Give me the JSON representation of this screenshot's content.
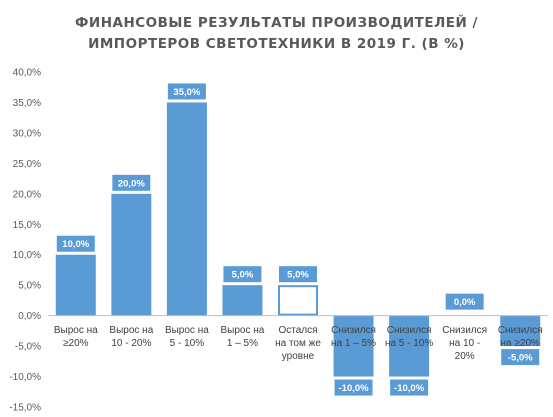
{
  "chart_data": {
    "type": "bar",
    "title_lines": [
      "ФИНАНСОВЫЕ РЕЗУЛЬТАТЫ ПРОИЗВОДИТЕЛЕЙ /",
      "ИМПОРТЕРОВ СВЕТОТЕХНИКИ В 2019 Г. (В %)"
    ],
    "categories": [
      [
        "Вырос на",
        "≥20%"
      ],
      [
        "Вырос на",
        "10 - 20%"
      ],
      [
        "Вырос на",
        "5 - 10%"
      ],
      [
        "Вырос на",
        "1 – 5%"
      ],
      [
        "Остался",
        "на том же",
        "уровне"
      ],
      [
        "Снизился",
        "на 1 – 5%"
      ],
      [
        "Снизился",
        "на 5 - 10%"
      ],
      [
        "Снизился",
        "на 10 -",
        "20%"
      ],
      [
        "Снизился",
        "на ≥20%"
      ]
    ],
    "values": [
      10.0,
      20.0,
      35.0,
      5.0,
      5.0,
      -10.0,
      -10.0,
      0.0,
      -5.0
    ],
    "data_labels": [
      "10,0%",
      "20,0%",
      "35,0%",
      "5,0%",
      "5,0%",
      "-10,0%",
      "-10,0%",
      "0,0%",
      "-5,0%"
    ],
    "highlighted_index": 4,
    "ylim": [
      -15,
      40
    ],
    "yticks": [
      40,
      35,
      30,
      25,
      20,
      15,
      10,
      5,
      0,
      -5,
      -10,
      -15
    ],
    "ytick_labels": [
      "40,0%",
      "35,0%",
      "30,0%",
      "25,0%",
      "20,0%",
      "15,0%",
      "10,0%",
      "5,0%",
      "0,0%",
      "-5,0%",
      "-10,0%",
      "-15,0%"
    ],
    "xlabel": "",
    "ylabel": "",
    "grid": false,
    "legend": "none",
    "colors": {
      "bar": "#5b9bd5",
      "highlight_fill": "#ffffff",
      "highlight_border": "#5b9bd5",
      "axis": "#bfbfbf",
      "text": "#595959"
    }
  }
}
